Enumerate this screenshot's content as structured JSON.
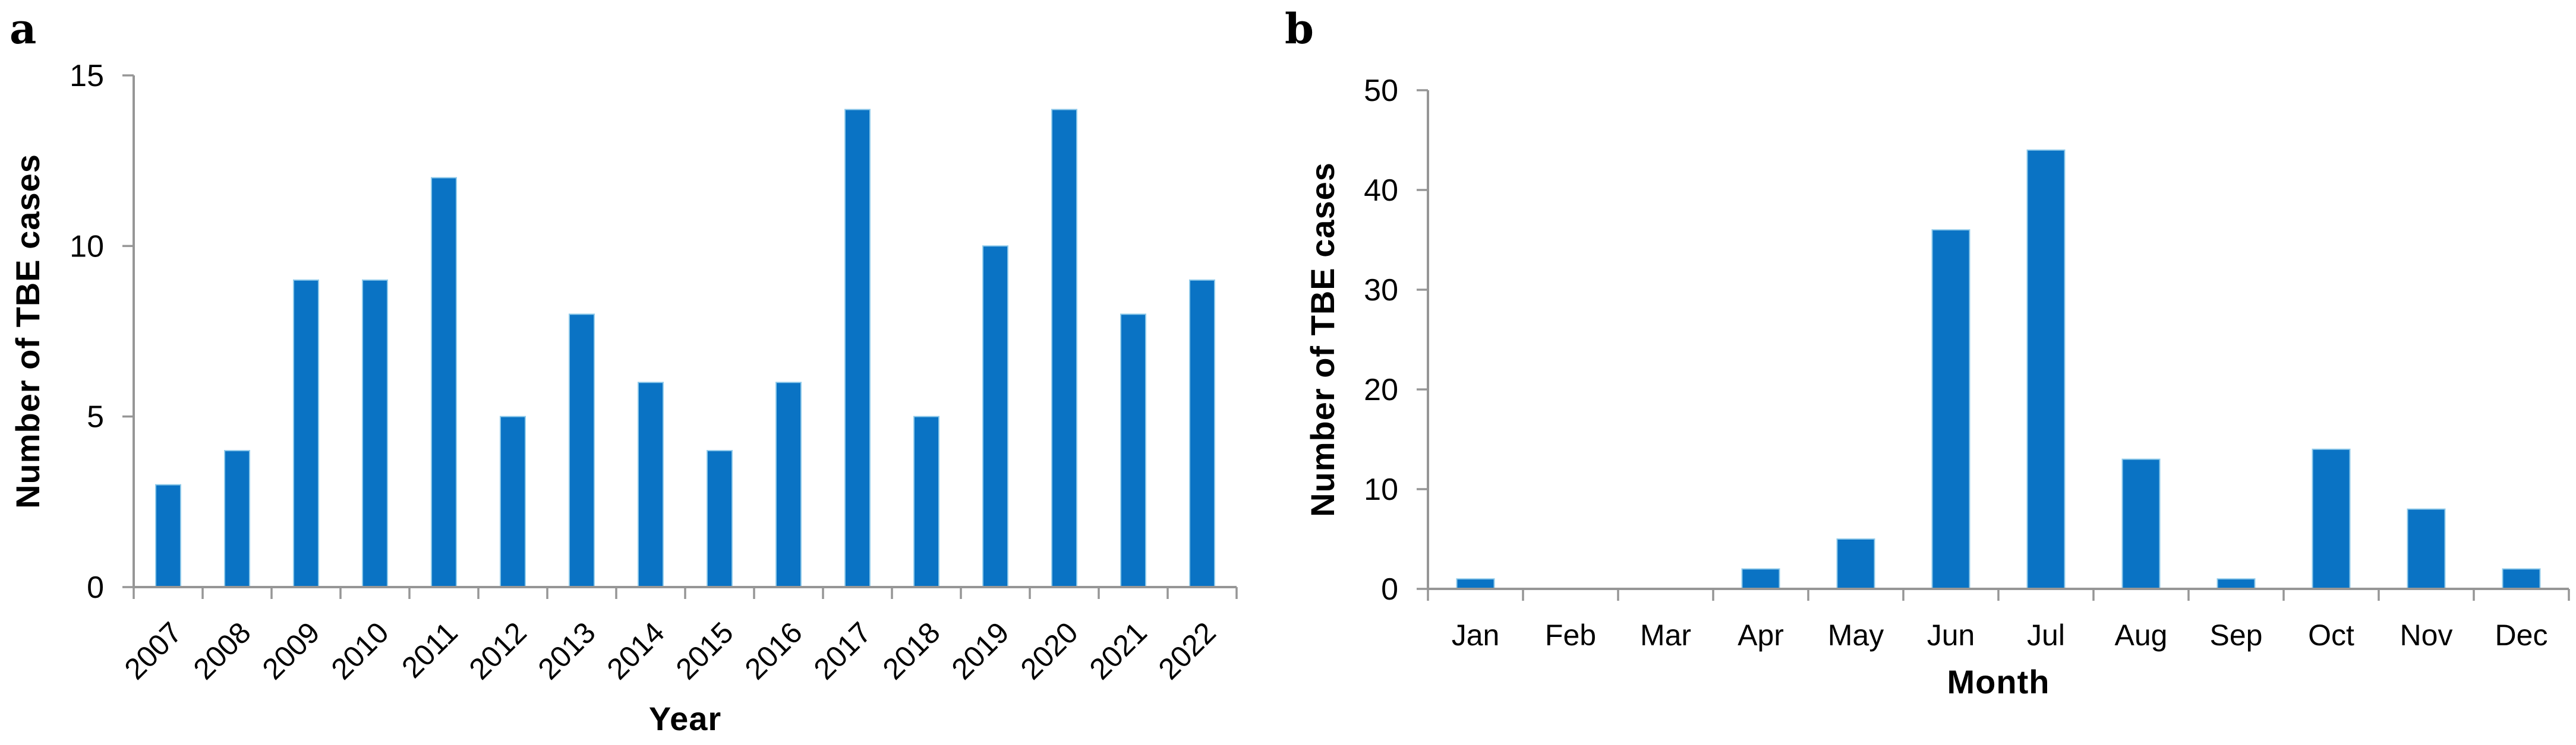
{
  "figure": {
    "background": "#ffffff"
  },
  "panels": [
    {
      "label": "a"
    },
    {
      "label": "b"
    }
  ],
  "colors": {
    "bar_fill": "#0a73c4",
    "bar_border": "#8fcaea",
    "axis": "#969696",
    "text": "#000000"
  },
  "chart_data": [
    {
      "type": "bar",
      "panel": "a",
      "title": "",
      "categories": [
        "2007",
        "2008",
        "2009",
        "2010",
        "2011",
        "2012",
        "2013",
        "2014",
        "2015",
        "2016",
        "2017",
        "2018",
        "2019",
        "2020",
        "2021",
        "2022"
      ],
      "values": [
        3,
        4,
        9,
        9,
        12,
        5,
        8,
        6,
        4,
        6,
        14,
        5,
        10,
        14,
        8,
        9
      ],
      "xlabel": "Year",
      "ylabel": "Number of TBE cases",
      "ylim": [
        0,
        15
      ],
      "yticks": [
        0,
        5,
        10,
        15
      ],
      "x_tick_label_rotation": -45,
      "grid": false,
      "legend": null
    },
    {
      "type": "bar",
      "panel": "b",
      "title": "",
      "categories": [
        "Jan",
        "Feb",
        "Mar",
        "Apr",
        "May",
        "Jun",
        "Jul",
        "Aug",
        "Sep",
        "Oct",
        "Nov",
        "Dec"
      ],
      "values": [
        1,
        0,
        0,
        2,
        5,
        36,
        44,
        13,
        1,
        14,
        8,
        2
      ],
      "xlabel": "Month",
      "ylabel": "Number of TBE cases",
      "ylim": [
        0,
        50
      ],
      "yticks": [
        0,
        10,
        20,
        30,
        40,
        50
      ],
      "x_tick_label_rotation": 0,
      "grid": false,
      "legend": null
    }
  ]
}
